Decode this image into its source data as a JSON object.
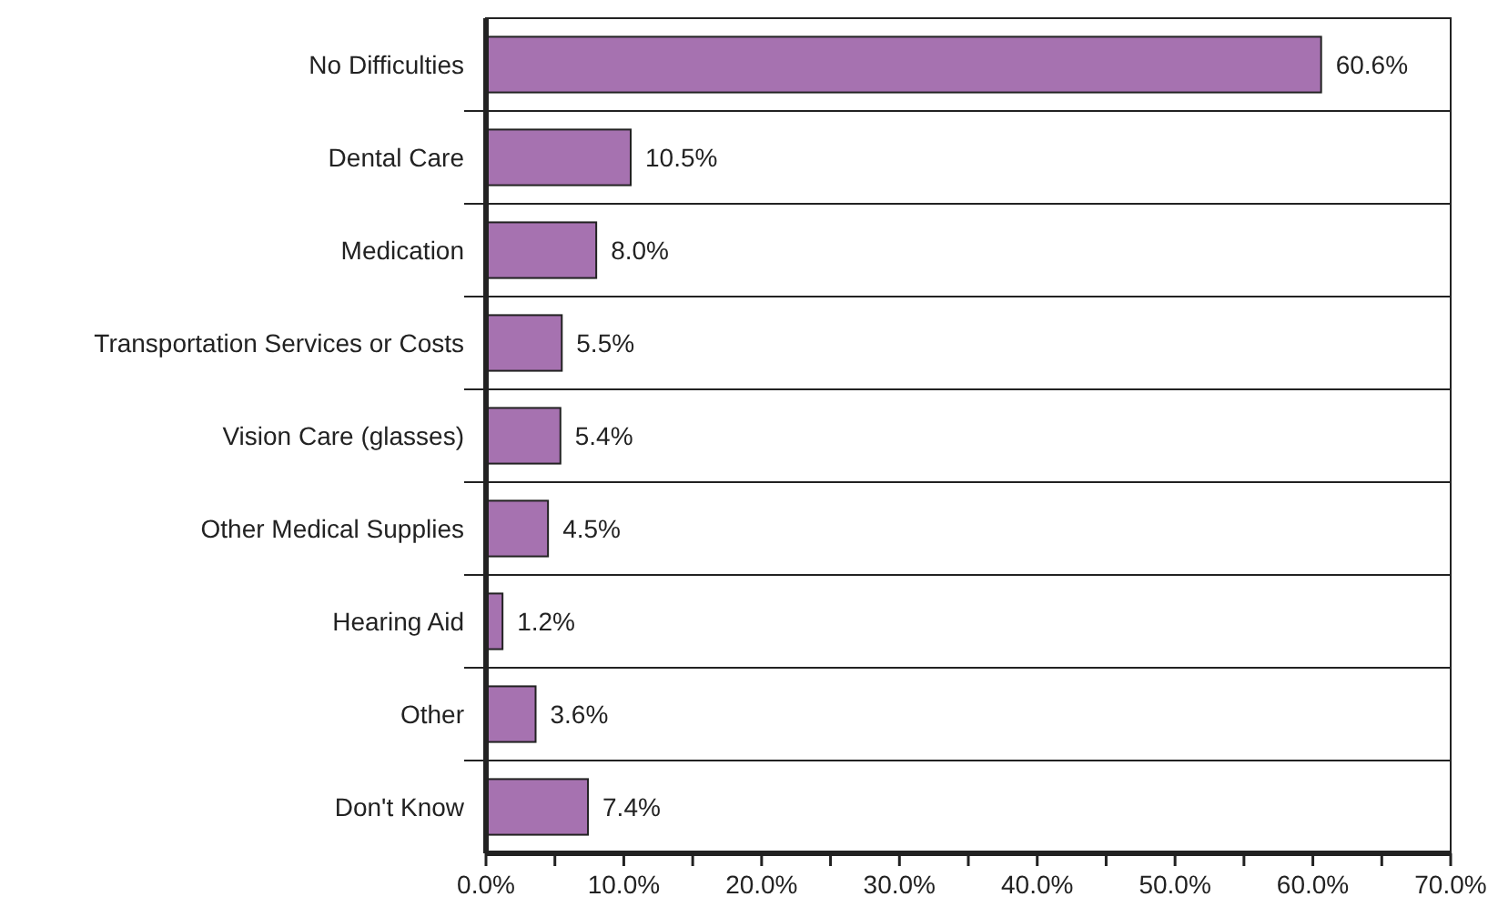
{
  "chart_data": {
    "type": "bar",
    "orientation": "horizontal",
    "categories": [
      "No Difficulties",
      "Dental Care",
      "Medication",
      "Transportation Services or Costs",
      "Vision Care (glasses)",
      "Other Medical Supplies",
      "Hearing Aid",
      "Other",
      "Don't Know"
    ],
    "values": [
      60.6,
      10.5,
      8.0,
      5.5,
      5.4,
      4.5,
      1.2,
      3.6,
      7.4
    ],
    "value_labels": [
      "60.6%",
      "10.5%",
      "8.0%",
      "5.5%",
      "5.4%",
      "4.5%",
      "1.2%",
      "3.6%",
      "7.4%"
    ],
    "color": "#a672b0",
    "xlim": [
      0,
      70
    ],
    "xticks": [
      {
        "value": 0,
        "label": "0.0%"
      },
      {
        "value": 5,
        "label": null
      },
      {
        "value": 10,
        "label": "10.0%"
      },
      {
        "value": 15,
        "label": null
      },
      {
        "value": 20,
        "label": "20.0%"
      },
      {
        "value": 25,
        "label": null
      },
      {
        "value": 30,
        "label": "30.0%"
      },
      {
        "value": 35,
        "label": null
      },
      {
        "value": 40,
        "label": "40.0%"
      },
      {
        "value": 45,
        "label": null
      },
      {
        "value": 50,
        "label": "50.0%"
      },
      {
        "value": 55,
        "label": null
      },
      {
        "value": 60,
        "label": "60.0%"
      },
      {
        "value": 65,
        "label": null
      },
      {
        "value": 70,
        "label": "70.0%"
      }
    ]
  }
}
